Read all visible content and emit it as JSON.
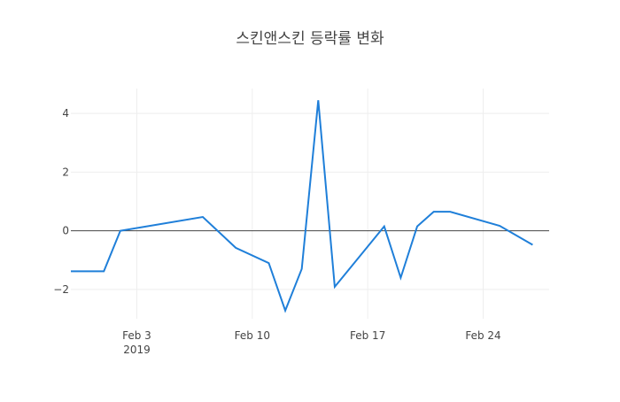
{
  "chart_data": {
    "type": "line",
    "title": "스킨앤스킨 등락률 변화",
    "xlabel": "",
    "ylabel": "",
    "x_axis": {
      "type": "date",
      "range": [
        "2019-01-30",
        "2019-02-28"
      ],
      "ticks": [
        {
          "date": "2019-02-03",
          "label": "Feb 3",
          "sublabel": "2019"
        },
        {
          "date": "2019-02-10",
          "label": "Feb 10",
          "sublabel": ""
        },
        {
          "date": "2019-02-17",
          "label": "Feb 17",
          "sublabel": ""
        },
        {
          "date": "2019-02-24",
          "label": "Feb 24",
          "sublabel": ""
        }
      ]
    },
    "y_axis": {
      "range": [
        -3.0,
        4.85
      ],
      "ticks": [
        {
          "value": -2,
          "label": "−2"
        },
        {
          "value": 0,
          "label": "0"
        },
        {
          "value": 2,
          "label": "2"
        },
        {
          "value": 4,
          "label": "4"
        }
      ],
      "zero_line": true
    },
    "grid": true,
    "line_color": "#1f7fd9",
    "series": [
      {
        "name": "",
        "points": [
          {
            "x": "2019-01-30",
            "y": -1.38
          },
          {
            "x": "2019-01-31",
            "y": -1.38
          },
          {
            "x": "2019-02-01",
            "y": -1.38
          },
          {
            "x": "2019-02-02",
            "y": 0.0
          },
          {
            "x": "2019-02-07",
            "y": 0.47
          },
          {
            "x": "2019-02-09",
            "y": -0.58
          },
          {
            "x": "2019-02-11",
            "y": -1.1
          },
          {
            "x": "2019-02-12",
            "y": -2.72
          },
          {
            "x": "2019-02-13",
            "y": -1.3
          },
          {
            "x": "2019-02-14",
            "y": 4.45
          },
          {
            "x": "2019-02-15",
            "y": -1.91
          },
          {
            "x": "2019-02-18",
            "y": 0.15
          },
          {
            "x": "2019-02-19",
            "y": -1.6
          },
          {
            "x": "2019-02-20",
            "y": 0.15
          },
          {
            "x": "2019-02-21",
            "y": 0.65
          },
          {
            "x": "2019-02-22",
            "y": 0.65
          },
          {
            "x": "2019-02-25",
            "y": 0.17
          },
          {
            "x": "2019-02-27",
            "y": -0.48
          }
        ]
      }
    ]
  }
}
